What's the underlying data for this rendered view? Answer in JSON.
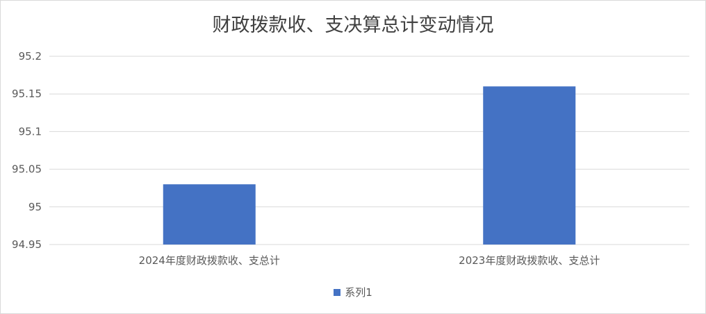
{
  "chart_data": {
    "type": "bar",
    "title": "财政拨款收、支决算总计变动情况",
    "categories": [
      "2024年度财政拨款收、支总计",
      "2023年度财政拨款收、支总计"
    ],
    "series": [
      {
        "name": "系列1",
        "values": [
          95.03,
          95.16
        ],
        "color": "#4472C4"
      }
    ],
    "ylim": [
      94.95,
      95.2
    ],
    "yticks": [
      "94.95",
      "95",
      "95.05",
      "95.1",
      "95.15",
      "95.2"
    ],
    "grid": true,
    "legend": "bottom"
  }
}
